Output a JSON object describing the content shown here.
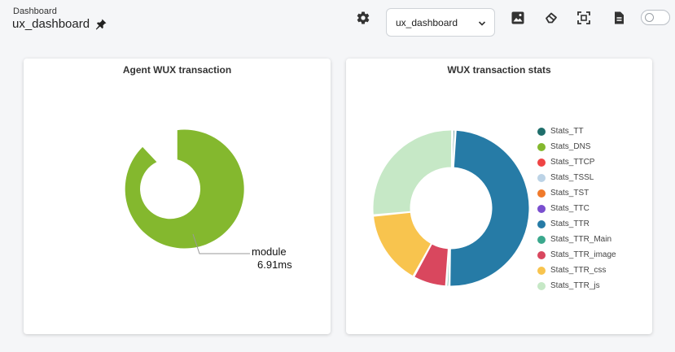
{
  "header": {
    "breadcrumb": "Dashboard",
    "title": "ux_dashboard",
    "dashboard_select": {
      "value": "ux_dashboard"
    },
    "tools": [
      "settings-icon",
      "image-icon",
      "eraser-icon",
      "fullscreen-icon",
      "document-icon",
      "toggle-switch"
    ]
  },
  "panels": {
    "left": {
      "title": "Agent WUX transaction",
      "label_name": "module",
      "label_value": "6.91ms"
    },
    "right": {
      "title": "WUX transaction stats"
    }
  },
  "chart_data": [
    {
      "type": "pie",
      "title": "Agent WUX transaction",
      "labels": [
        "module"
      ],
      "values": [
        6.91
      ],
      "colors": [
        "#84b82e"
      ]
    },
    {
      "type": "pie",
      "title": "WUX transaction stats",
      "legend_position": "right",
      "labels": [
        "Stats_TT",
        "Stats_DNS",
        "Stats_TTCP",
        "Stats_TSSL",
        "Stats_TST",
        "Stats_TTC",
        "Stats_TTR",
        "Stats_TTR_Main",
        "Stats_TTR_image",
        "Stats_TTR_css",
        "Stats_TTR_js"
      ],
      "values": [
        0.6,
        0,
        0,
        0,
        0,
        0,
        49.5,
        0.6,
        7.0,
        15.5,
        26.8
      ],
      "colors": [
        "#1f6e6b",
        "#84b82e",
        "#ef4444",
        "#bcd3e6",
        "#f07a2b",
        "#7a4fcf",
        "#267ba6",
        "#3ba88d",
        "#d9475e",
        "#f8c44e",
        "#c6e8c6"
      ]
    }
  ]
}
